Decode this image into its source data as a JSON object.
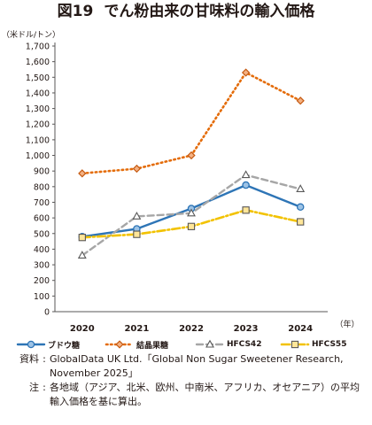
{
  "figure": {
    "number": "図19",
    "title": "でん粉由来の甘味料の輸入価格"
  },
  "chart_data": {
    "type": "line",
    "title": "でん粉由来の甘味料の輸入価格",
    "xlabel": "（年）",
    "ylabel": "（米ドル/トン）",
    "ylim": [
      0,
      1700
    ],
    "yticks": [
      0,
      100,
      200,
      300,
      400,
      500,
      600,
      700,
      800,
      900,
      1000,
      1100,
      1200,
      1300,
      1400,
      1500,
      1600,
      1700
    ],
    "ytick_labels": [
      "0",
      "100",
      "200",
      "300",
      "400",
      "500",
      "600",
      "700",
      "800",
      "900",
      "1,000",
      "1,100",
      "1,200",
      "1,300",
      "1,400",
      "1,500",
      "1,600",
      "1,700"
    ],
    "categories": [
      "2020",
      "2021",
      "2022",
      "2023",
      "2024"
    ],
    "grid": false,
    "legend_position": "bottom",
    "series": [
      {
        "name": "ブドウ糖",
        "values": [
          480,
          530,
          660,
          810,
          670
        ],
        "color": "#2e75b6",
        "marker": "circle",
        "line": "solid"
      },
      {
        "name": "結晶果糖",
        "values": [
          885,
          915,
          1000,
          1530,
          1350
        ],
        "color": "#e46c0a",
        "marker": "diamond",
        "line": "dotted"
      },
      {
        "name": "HFCS42",
        "values": [
          360,
          610,
          630,
          875,
          785
        ],
        "color": "#a6a6a6",
        "marker": "triangle",
        "line": "dashed"
      },
      {
        "name": "HFCS55",
        "values": [
          475,
          495,
          545,
          650,
          575
        ],
        "color": "#f2c200",
        "marker": "square",
        "line": "dashdot"
      }
    ]
  },
  "notes": [
    {
      "key": "資料",
      "text": "GlobalData UK Ltd.「Global Non Sugar Sweetener Research, November 2025」"
    },
    {
      "key": "注",
      "text": "各地域（アジア、北米、欧州、中南米、アフリカ、オセアニア）の平均輸入価格を基に算出。"
    }
  ]
}
